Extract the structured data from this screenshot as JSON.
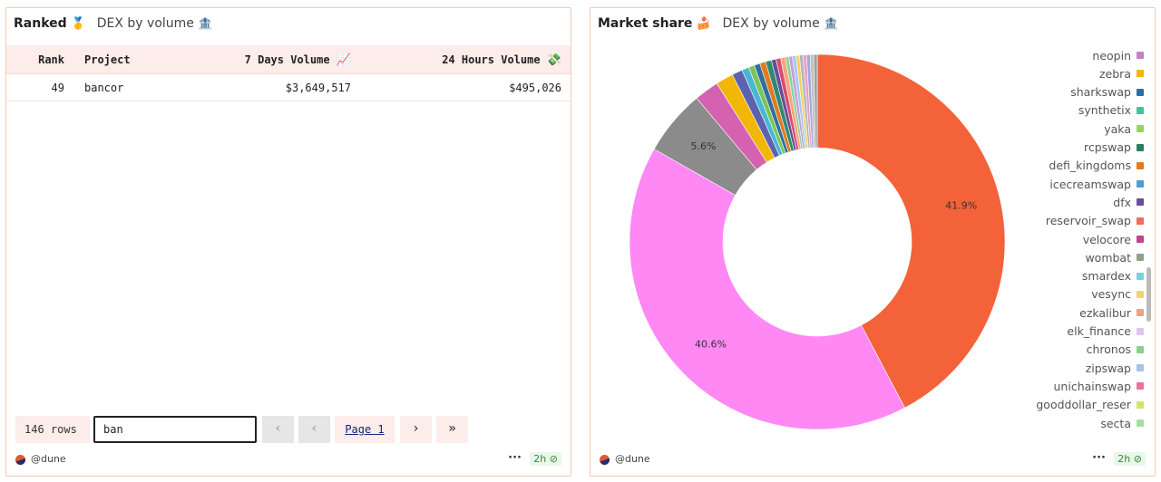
{
  "left_panel": {
    "title": "Ranked",
    "title_emoji": "🥇",
    "subtitle": "DEX by volume",
    "subtitle_emoji": "🏦",
    "columns": {
      "rank": "Rank",
      "project": "Project",
      "volume_7d": "7 Days Volume",
      "volume_7d_emoji": "📈",
      "volume_24h": "24 Hours Volume",
      "volume_24h_emoji": "💸"
    },
    "rows": [
      {
        "rank": "49",
        "project": "bancor",
        "volume_7d": "$3,649,517",
        "volume_24h": "$495,026"
      }
    ],
    "pager": {
      "rows_count": "146 rows",
      "search_value": "ban",
      "first_icon": "«",
      "prev_icon": "‹",
      "page_label": "Page 1",
      "next_icon": "›",
      "last_icon": "»"
    },
    "footer": {
      "owner": "@dune",
      "menu": "···",
      "age": "2h"
    }
  },
  "right_panel": {
    "title": "Market share",
    "title_emoji": "🍰",
    "subtitle": "DEX by volume",
    "subtitle_emoji": "🏦",
    "footer": {
      "owner": "@dune",
      "menu": "···",
      "age": "2h"
    }
  },
  "chart_data": {
    "type": "pie",
    "donut": true,
    "slices": [
      {
        "share": 41.9,
        "color": "#f4623a",
        "label": "41.9%"
      },
      {
        "share": 40.6,
        "color": "#ff88f5",
        "label": "40.6%"
      },
      {
        "share": 5.6,
        "color": "#8b8b8b",
        "label": "5.6%"
      },
      {
        "share": 2.1,
        "color": "#d462b0"
      },
      {
        "share": 1.5,
        "color": "#f2b705"
      },
      {
        "share": 0.9,
        "color": "#5c62b0"
      },
      {
        "share": 0.6,
        "color": "#46b8d4"
      },
      {
        "share": 0.5,
        "color": "#7fc35a"
      },
      {
        "share": 0.5,
        "color": "#2f6f9e"
      },
      {
        "share": 0.5,
        "color": "#e07b1f"
      },
      {
        "share": 0.5,
        "color": "#2e8b6e"
      },
      {
        "share": 0.4,
        "color": "#6a4c9c"
      },
      {
        "share": 0.4,
        "color": "#d94c6e"
      },
      {
        "share": 0.4,
        "color": "#f3a77c"
      },
      {
        "share": 0.3,
        "color": "#8fd19e"
      },
      {
        "share": 0.3,
        "color": "#c59be0"
      },
      {
        "share": 0.3,
        "color": "#a8c7ee"
      },
      {
        "share": 0.3,
        "color": "#f0d36c"
      },
      {
        "share": 0.3,
        "color": "#b5b5b5"
      },
      {
        "share": 0.3,
        "color": "#e8a0c8"
      },
      {
        "share": 0.3,
        "color": "#9fa8da"
      },
      {
        "share": 0.3,
        "color": "#c0c0c0"
      },
      {
        "share": 0.3,
        "color": "#a0a0a0"
      }
    ],
    "legend": [
      {
        "name": "neopin",
        "color": "#c482c5"
      },
      {
        "name": "zebra",
        "color": "#f2b705"
      },
      {
        "name": "sharkswap",
        "color": "#2f6f9e"
      },
      {
        "name": "synthetix",
        "color": "#3ec4a1"
      },
      {
        "name": "yaka",
        "color": "#98d35a"
      },
      {
        "name": "rcpswap",
        "color": "#2e7d5e"
      },
      {
        "name": "defi_kingdoms",
        "color": "#e07b1f"
      },
      {
        "name": "icecreamswap",
        "color": "#4a9fd4"
      },
      {
        "name": "dfx",
        "color": "#6a4c9c"
      },
      {
        "name": "reservoir_swap",
        "color": "#ef6d5a"
      },
      {
        "name": "velocore",
        "color": "#c0448e"
      },
      {
        "name": "wombat",
        "color": "#8fa08a"
      },
      {
        "name": "smardex",
        "color": "#78d0e0"
      },
      {
        "name": "vesync",
        "color": "#f6d06c"
      },
      {
        "name": "ezkalibur",
        "color": "#f4a07c"
      },
      {
        "name": "elk_finance",
        "color": "#e2c2f2"
      },
      {
        "name": "chronos",
        "color": "#8ccf90"
      },
      {
        "name": "zipswap",
        "color": "#a8c1ee"
      },
      {
        "name": "unichainswap",
        "color": "#ef6fa0"
      },
      {
        "name": "gooddollar_reser",
        "color": "#d6e36a"
      },
      {
        "name": "secta",
        "color": "#a6e0a0"
      }
    ]
  }
}
